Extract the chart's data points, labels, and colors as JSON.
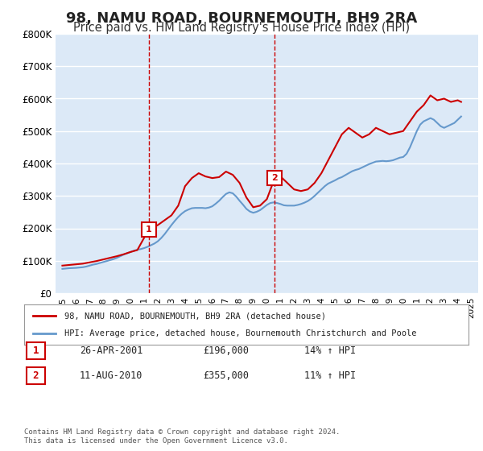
{
  "title": "98, NAMU ROAD, BOURNEMOUTH, BH9 2RA",
  "subtitle": "Price paid vs. HM Land Registry's House Price Index (HPI)",
  "title_fontsize": 13,
  "subtitle_fontsize": 10.5,
  "background_color": "#ffffff",
  "plot_bg_color": "#dce9f7",
  "grid_color": "#ffffff",
  "ylim": [
    0,
    800000
  ],
  "yticks": [
    0,
    100000,
    200000,
    300000,
    400000,
    500000,
    600000,
    700000,
    800000
  ],
  "ytick_labels": [
    "£0",
    "£100K",
    "£200K",
    "£300K",
    "£400K",
    "£500K",
    "£600K",
    "£700K",
    "£800K"
  ],
  "xlim_start": 1994.5,
  "xlim_end": 2025.5,
  "xticks": [
    1995,
    1996,
    1997,
    1998,
    1999,
    2000,
    2001,
    2002,
    2003,
    2004,
    2005,
    2006,
    2007,
    2008,
    2009,
    2010,
    2011,
    2012,
    2013,
    2014,
    2015,
    2016,
    2017,
    2018,
    2019,
    2020,
    2021,
    2022,
    2023,
    2024,
    2025
  ],
  "hpi_x": [
    1995.0,
    1995.25,
    1995.5,
    1995.75,
    1996.0,
    1996.25,
    1996.5,
    1996.75,
    1997.0,
    1997.25,
    1997.5,
    1997.75,
    1998.0,
    1998.25,
    1998.5,
    1998.75,
    1999.0,
    1999.25,
    1999.5,
    1999.75,
    2000.0,
    2000.25,
    2000.5,
    2000.75,
    2001.0,
    2001.25,
    2001.5,
    2001.75,
    2002.0,
    2002.25,
    2002.5,
    2002.75,
    2003.0,
    2003.25,
    2003.5,
    2003.75,
    2004.0,
    2004.25,
    2004.5,
    2004.75,
    2005.0,
    2005.25,
    2005.5,
    2005.75,
    2006.0,
    2006.25,
    2006.5,
    2006.75,
    2007.0,
    2007.25,
    2007.5,
    2007.75,
    2008.0,
    2008.25,
    2008.5,
    2008.75,
    2009.0,
    2009.25,
    2009.5,
    2009.75,
    2010.0,
    2010.25,
    2010.5,
    2010.75,
    2011.0,
    2011.25,
    2011.5,
    2011.75,
    2012.0,
    2012.25,
    2012.5,
    2012.75,
    2013.0,
    2013.25,
    2013.5,
    2013.75,
    2014.0,
    2014.25,
    2014.5,
    2014.75,
    2015.0,
    2015.25,
    2015.5,
    2015.75,
    2016.0,
    2016.25,
    2016.5,
    2016.75,
    2017.0,
    2017.25,
    2017.5,
    2017.75,
    2018.0,
    2018.25,
    2018.5,
    2018.75,
    2019.0,
    2019.25,
    2019.5,
    2019.75,
    2020.0,
    2020.25,
    2020.5,
    2020.75,
    2021.0,
    2021.25,
    2021.5,
    2021.75,
    2022.0,
    2022.25,
    2022.5,
    2022.75,
    2023.0,
    2023.25,
    2023.5,
    2023.75,
    2024.0,
    2024.25
  ],
  "hpi_y": [
    75000,
    76000,
    77000,
    77500,
    78000,
    79000,
    80000,
    82000,
    85000,
    88000,
    90000,
    93000,
    96000,
    99000,
    102000,
    105000,
    109000,
    114000,
    119000,
    123000,
    127000,
    131000,
    134000,
    136000,
    139000,
    143000,
    148000,
    153000,
    160000,
    170000,
    182000,
    196000,
    210000,
    223000,
    235000,
    245000,
    253000,
    258000,
    262000,
    263000,
    263000,
    263000,
    262000,
    264000,
    268000,
    276000,
    285000,
    296000,
    306000,
    311000,
    308000,
    298000,
    285000,
    273000,
    260000,
    252000,
    248000,
    251000,
    256000,
    264000,
    272000,
    278000,
    280000,
    278000,
    275000,
    271000,
    270000,
    270000,
    270000,
    272000,
    275000,
    279000,
    284000,
    291000,
    300000,
    310000,
    320000,
    330000,
    338000,
    343000,
    348000,
    354000,
    358000,
    364000,
    370000,
    376000,
    380000,
    383000,
    388000,
    393000,
    398000,
    402000,
    406000,
    407000,
    408000,
    407000,
    408000,
    410000,
    414000,
    418000,
    420000,
    430000,
    450000,
    475000,
    500000,
    520000,
    530000,
    535000,
    540000,
    535000,
    525000,
    515000,
    510000,
    515000,
    520000,
    525000,
    535000,
    545000
  ],
  "red_x": [
    1995.0,
    1995.5,
    1996.0,
    1996.5,
    1997.0,
    1997.5,
    1998.0,
    1998.5,
    1999.0,
    1999.5,
    2000.0,
    2000.5,
    2001.33,
    2001.5,
    2002.0,
    2002.5,
    2003.0,
    2003.5,
    2004.0,
    2004.5,
    2005.0,
    2005.5,
    2006.0,
    2006.5,
    2007.0,
    2007.5,
    2008.0,
    2008.5,
    2009.0,
    2009.5,
    2010.0,
    2010.58,
    2011.0,
    2011.5,
    2012.0,
    2012.5,
    2013.0,
    2013.5,
    2014.0,
    2014.5,
    2015.0,
    2015.5,
    2016.0,
    2016.5,
    2017.0,
    2017.5,
    2018.0,
    2018.5,
    2019.0,
    2019.5,
    2020.0,
    2020.5,
    2021.0,
    2021.5,
    2022.0,
    2022.5,
    2023.0,
    2023.5,
    2024.0,
    2024.25
  ],
  "red_y": [
    85000,
    87000,
    89000,
    91000,
    95000,
    99000,
    104000,
    109000,
    114000,
    120000,
    127000,
    133000,
    196000,
    200000,
    210000,
    225000,
    240000,
    270000,
    330000,
    355000,
    370000,
    360000,
    355000,
    358000,
    375000,
    365000,
    340000,
    295000,
    265000,
    270000,
    290000,
    355000,
    360000,
    340000,
    320000,
    315000,
    320000,
    340000,
    370000,
    410000,
    450000,
    490000,
    510000,
    495000,
    480000,
    490000,
    510000,
    500000,
    490000,
    495000,
    500000,
    530000,
    560000,
    580000,
    610000,
    595000,
    600000,
    590000,
    595000,
    590000
  ],
  "marker1_x": 2001.33,
  "marker1_y": 196000,
  "marker1_label": "1",
  "marker2_x": 2010.58,
  "marker2_y": 355000,
  "marker2_label": "2",
  "vline1_x": 2001.33,
  "vline2_x": 2010.58,
  "vline_color": "#cc0000",
  "vline_style": "--",
  "red_line_color": "#cc0000",
  "blue_line_color": "#6699cc",
  "legend_label_red": "98, NAMU ROAD, BOURNEMOUTH, BH9 2RA (detached house)",
  "legend_label_blue": "HPI: Average price, detached house, Bournemouth Christchurch and Poole",
  "transaction1_num": "1",
  "transaction1_date": "26-APR-2001",
  "transaction1_price": "£196,000",
  "transaction1_hpi": "14% ↑ HPI",
  "transaction2_num": "2",
  "transaction2_date": "11-AUG-2010",
  "transaction2_price": "£355,000",
  "transaction2_hpi": "11% ↑ HPI",
  "footer": "Contains HM Land Registry data © Crown copyright and database right 2024.\nThis data is licensed under the Open Government Licence v3.0."
}
